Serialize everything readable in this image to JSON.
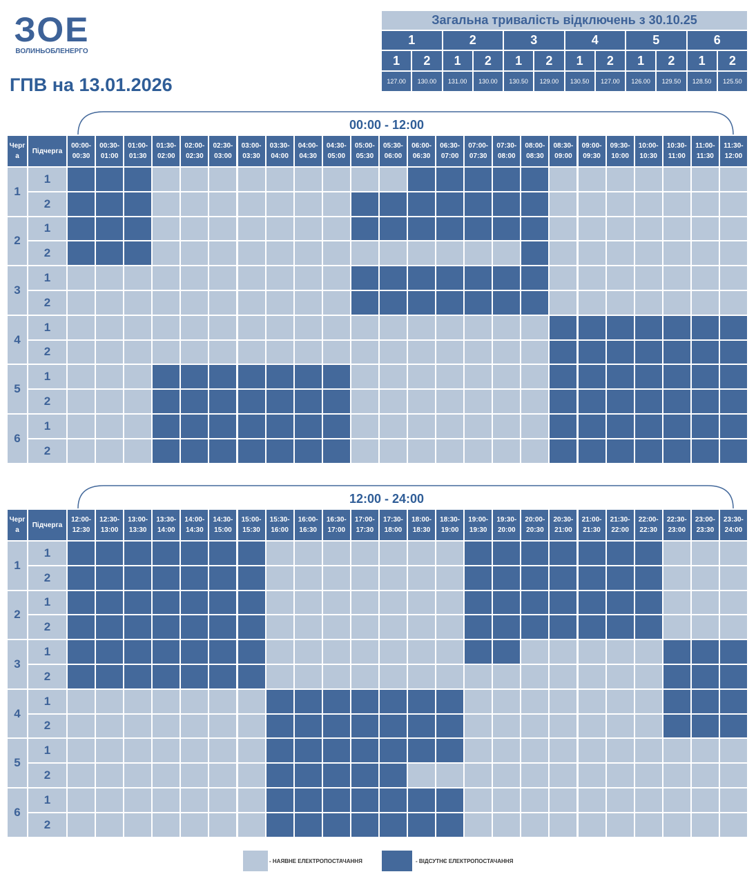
{
  "header": {
    "logo": "ЗОЕ",
    "company": "ВОЛИНЬОБЛЕНЕРГО",
    "title": "ГПВ на 13.01.2026"
  },
  "summary": {
    "title": "Загальна тривалість відключень з 30.10.25",
    "groups": [
      {
        "label": "1",
        "subgroups": [
          {
            "label": "1",
            "value": "127.00"
          },
          {
            "label": "2",
            "value": "130.00"
          }
        ]
      },
      {
        "label": "2",
        "subgroups": [
          {
            "label": "1",
            "value": "131.00"
          },
          {
            "label": "2",
            "value": "130.00"
          }
        ]
      },
      {
        "label": "3",
        "subgroups": [
          {
            "label": "1",
            "value": "130.50"
          },
          {
            "label": "2",
            "value": "129.00"
          }
        ]
      },
      {
        "label": "4",
        "subgroups": [
          {
            "label": "1",
            "value": "130.50"
          },
          {
            "label": "2",
            "value": "127.00"
          }
        ]
      },
      {
        "label": "5",
        "subgroups": [
          {
            "label": "1",
            "value": "126.00"
          },
          {
            "label": "2",
            "value": "129.50"
          }
        ]
      },
      {
        "label": "6",
        "subgroups": [
          {
            "label": "1",
            "value": "128.50"
          },
          {
            "label": "2",
            "value": "125.50"
          }
        ]
      }
    ]
  },
  "tables": [
    {
      "range": "00:00 - 12:00",
      "queue_header": "Черга",
      "subqueue_header": "Підчерга",
      "slots": [
        "00:00-00:30",
        "00:30-01:00",
        "01:00-01:30",
        "01:30-02:00",
        "02:00-02:30",
        "02:30-03:00",
        "03:00-03:30",
        "03:30-04:00",
        "04:00-04:30",
        "04:30-05:00",
        "05:00-05:30",
        "05:30-06:00",
        "06:00-06:30",
        "06:30-07:00",
        "07:00-07:30",
        "07:30-08:00",
        "08:00-08:30",
        "08:30-09:00",
        "09:00-09:30",
        "09:30-10:00",
        "10:00-10:30",
        "10:30-11:00",
        "11:00-11:30",
        "11:30-12:00"
      ],
      "queues": [
        {
          "label": "1",
          "subqueues": [
            {
              "label": "1",
              "off": [
                0,
                1,
                2,
                12,
                13,
                14,
                15,
                16
              ]
            },
            {
              "label": "2",
              "off": [
                0,
                1,
                2,
                10,
                11,
                12,
                13,
                14,
                15,
                16
              ]
            }
          ]
        },
        {
          "label": "2",
          "subqueues": [
            {
              "label": "1",
              "off": [
                0,
                1,
                2,
                10,
                11,
                12,
                13,
                14,
                15,
                16
              ]
            },
            {
              "label": "2",
              "off": [
                0,
                1,
                2,
                16
              ]
            }
          ]
        },
        {
          "label": "3",
          "subqueues": [
            {
              "label": "1",
              "off": [
                10,
                11,
                12,
                13,
                14,
                15,
                16
              ]
            },
            {
              "label": "2",
              "off": [
                10,
                11,
                12,
                13,
                14,
                15,
                16
              ]
            }
          ]
        },
        {
          "label": "4",
          "subqueues": [
            {
              "label": "1",
              "off": [
                17,
                18,
                19,
                20,
                21,
                22,
                23
              ]
            },
            {
              "label": "2",
              "off": [
                17,
                18,
                19,
                20,
                21,
                22,
                23
              ]
            }
          ]
        },
        {
          "label": "5",
          "subqueues": [
            {
              "label": "1",
              "off": [
                3,
                4,
                5,
                6,
                7,
                8,
                9,
                17,
                18,
                19,
                20,
                21,
                22,
                23
              ]
            },
            {
              "label": "2",
              "off": [
                3,
                4,
                5,
                6,
                7,
                8,
                9,
                17,
                18,
                19,
                20,
                21,
                22,
                23
              ]
            }
          ]
        },
        {
          "label": "6",
          "subqueues": [
            {
              "label": "1",
              "off": [
                3,
                4,
                5,
                6,
                7,
                8,
                9,
                17,
                18,
                19,
                20,
                21,
                22,
                23
              ]
            },
            {
              "label": "2",
              "off": [
                3,
                4,
                5,
                6,
                7,
                8,
                9,
                17,
                18,
                19,
                20,
                21,
                22,
                23
              ]
            }
          ]
        }
      ]
    },
    {
      "range": "12:00 - 24:00",
      "queue_header": "Черга",
      "subqueue_header": "Підчерга",
      "slots": [
        "12:00-12:30",
        "12:30-13:00",
        "13:00-13:30",
        "13:30-14:00",
        "14:00-14:30",
        "14:30-15:00",
        "15:00-15:30",
        "15:30-16:00",
        "16:00-16:30",
        "16:30-17:00",
        "17:00-17:30",
        "17:30-18:00",
        "18:00-18:30",
        "18:30-19:00",
        "19:00-19:30",
        "19:30-20:00",
        "20:00-20:30",
        "20:30-21:00",
        "21:00-21:30",
        "21:30-22:00",
        "22:00-22:30",
        "22:30-23:00",
        "23:00-23:30",
        "23:30-24:00"
      ],
      "queues": [
        {
          "label": "1",
          "subqueues": [
            {
              "label": "1",
              "off": [
                0,
                1,
                2,
                3,
                4,
                5,
                6,
                14,
                15,
                16,
                17,
                18,
                19,
                20
              ]
            },
            {
              "label": "2",
              "off": [
                0,
                1,
                2,
                3,
                4,
                5,
                6,
                14,
                15,
                16,
                17,
                18,
                19,
                20
              ]
            }
          ]
        },
        {
          "label": "2",
          "subqueues": [
            {
              "label": "1",
              "off": [
                0,
                1,
                2,
                3,
                4,
                5,
                6,
                14,
                15,
                16,
                17,
                18,
                19,
                20
              ]
            },
            {
              "label": "2",
              "off": [
                0,
                1,
                2,
                3,
                4,
                5,
                6,
                14,
                15,
                16,
                17,
                18,
                19,
                20
              ]
            }
          ]
        },
        {
          "label": "3",
          "subqueues": [
            {
              "label": "1",
              "off": [
                0,
                1,
                2,
                3,
                4,
                5,
                6,
                14,
                15,
                21,
                22,
                23
              ]
            },
            {
              "label": "2",
              "off": [
                0,
                1,
                2,
                3,
                4,
                5,
                6,
                21,
                22,
                23
              ]
            }
          ]
        },
        {
          "label": "4",
          "subqueues": [
            {
              "label": "1",
              "off": [
                7,
                8,
                9,
                10,
                11,
                12,
                13,
                21,
                22,
                23
              ]
            },
            {
              "label": "2",
              "off": [
                7,
                8,
                9,
                10,
                11,
                12,
                13,
                21,
                22,
                23
              ]
            }
          ]
        },
        {
          "label": "5",
          "subqueues": [
            {
              "label": "1",
              "off": [
                7,
                8,
                9,
                10,
                11,
                12,
                13
              ]
            },
            {
              "label": "2",
              "off": [
                7,
                8,
                9,
                10,
                11
              ]
            }
          ]
        },
        {
          "label": "6",
          "subqueues": [
            {
              "label": "1",
              "off": [
                7,
                8,
                9,
                10,
                11,
                12,
                13
              ]
            },
            {
              "label": "2",
              "off": [
                7,
                8,
                9,
                10,
                11,
                12,
                13
              ]
            }
          ]
        }
      ]
    }
  ],
  "legend": [
    {
      "label": "- НАЯВНЕ ЕЛЕКТРОПОСТАЧАННЯ",
      "color": "#b8c7d9"
    },
    {
      "label": "- ВІДСУТНЄ ЕЛЕКТРОПОСТАЧАННЯ",
      "color": "#44699b"
    }
  ]
}
